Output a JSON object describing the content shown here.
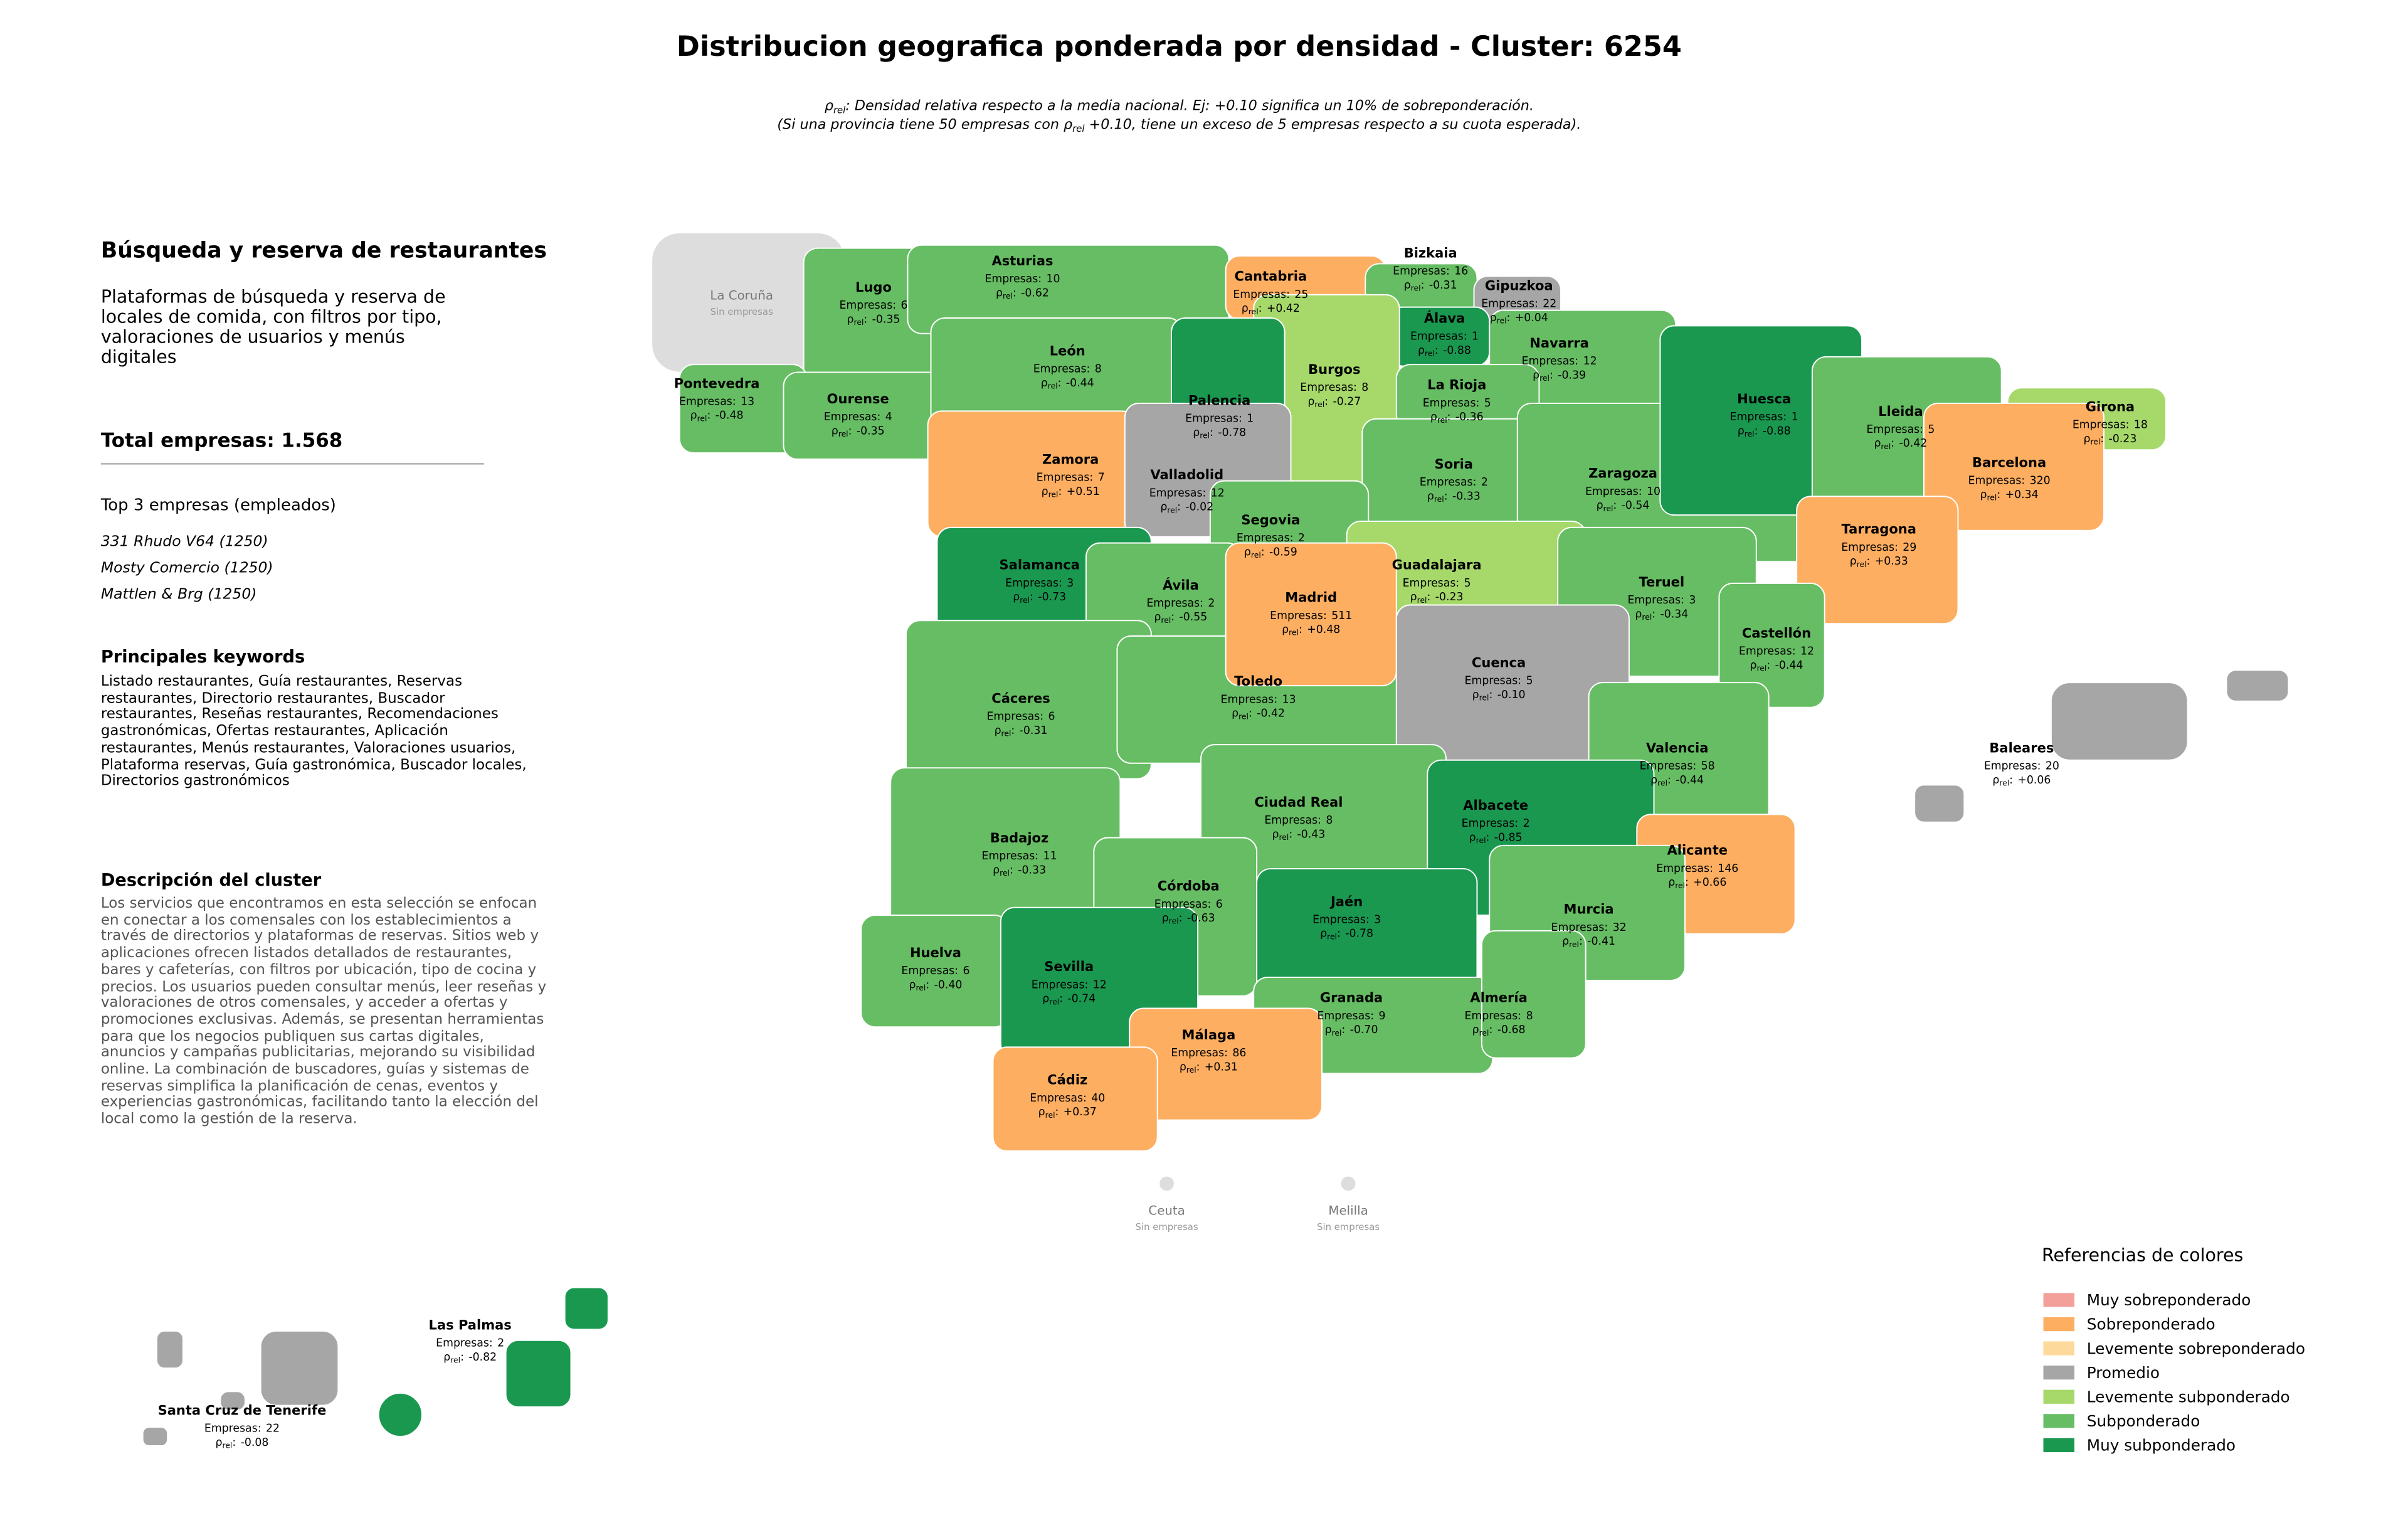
{
  "title": "Distribucion geografica ponderada por densidad - Cluster: 6254",
  "subtitle": {
    "line1": ": Densidad relativa respecto a la media nacional. Ej: +0.10 significa un 10% de sobreponderación.",
    "line2_before": "(Si una provincia tiene 50 empresas con ",
    "line2_after": " +0.10, tiene un exceso de 5 empresas respecto a su cuota esperada)."
  },
  "labels": {
    "empresas": "Empresas:",
    "rho": "ρ",
    "rho_sub": "rel",
    "rho_after": ":",
    "no_data": "Sin empresas"
  },
  "panel": {
    "heading": "Búsqueda y reserva de restaurantes",
    "description": "Plataformas de búsqueda y reserva de locales de comida, con filtros por tipo, valoraciones de usuarios y menús digitales",
    "total": "Total empresas: 1.568",
    "top_title": "Top 3 empresas (empleados)",
    "top": [
      "331 Rhudo V64 (1250)",
      "Mosty Comercio (1250)",
      "Mattlen & Brg (1250)"
    ],
    "keywords_title": "Principales keywords",
    "keywords": "Listado restaurantes, Guía restaurantes, Reservas restaurantes, Directorio restaurantes, Buscador restaurantes, Reseñas restaurantes, Recomendaciones gastronómicas, Ofertas restaurantes, Aplicación restaurantes, Menús restaurantes, Valoraciones usuarios, Plataforma reservas, Guía gastronómica, Buscador locales, Directorios gastronómicos",
    "description_title": "Descripción del cluster",
    "description_text": "Los servicios que encontramos en esta selección se enfocan en conectar a los comensales con los establecimientos a través de directorios y plataformas de reservas. Sitios web y aplicaciones ofrecen listados detallados de restaurantes, bares y cafeterías, con filtros por ubicación, tipo de cocina y precios. Los usuarios pueden consultar menús, leer reseñas y valoraciones de otros comensales, y acceder a ofertas y promociones exclusivas. Además, se presentan herramientas para que los negocios publiquen sus cartas digitales, anuncios y campañas publicitarias, mejorando su visibilidad online. La combinación de buscadores, guías y sistemas de reservas simplifica la planificación de cenas, eventos y experiencias gastronómicas, facilitando tanto la elección del local como la gestión de la reserva."
  },
  "regions": [
    {
      "name": "La Coruña",
      "color": "#dddddd"
    },
    {
      "name": "Lugo",
      "empresas": 6,
      "rho": "-0.35",
      "color": "#66bd63"
    },
    {
      "name": "Pontevedra",
      "empresas": 13,
      "rho": "-0.48",
      "color": "#66bd63"
    },
    {
      "name": "Ourense",
      "empresas": 4,
      "rho": "-0.35",
      "color": "#66bd63"
    },
    {
      "name": "Asturias",
      "empresas": 10,
      "rho": "-0.62",
      "color": "#66bd63"
    },
    {
      "name": "Cantabria",
      "empresas": 25,
      "rho": "+0.42",
      "color": "#fdae61"
    },
    {
      "name": "Bizkaia",
      "empresas": 16,
      "rho": "-0.31",
      "color": "#66bd63"
    },
    {
      "name": "Gipuzkoa",
      "empresas": 22,
      "rho": "+0.04",
      "color": "#a6a6a6"
    },
    {
      "name": "Álava",
      "empresas": 1,
      "rho": "-0.88",
      "color": "#1a9850"
    },
    {
      "name": "Navarra",
      "empresas": 12,
      "rho": "-0.39",
      "color": "#66bd63"
    },
    {
      "name": "León",
      "empresas": 8,
      "rho": "-0.44",
      "color": "#66bd63"
    },
    {
      "name": "Burgos",
      "empresas": 8,
      "rho": "-0.27",
      "color": "#a6d96a"
    },
    {
      "name": "Palencia",
      "empresas": 1,
      "rho": "-0.78",
      "color": "#1a9850"
    },
    {
      "name": "La Rioja",
      "empresas": 5,
      "rho": "-0.36",
      "color": "#66bd63"
    },
    {
      "name": "Zamora",
      "empresas": 7,
      "rho": "+0.51",
      "color": "#fdae61"
    },
    {
      "name": "Valladolid",
      "empresas": 12,
      "rho": "-0.02",
      "color": "#a6a6a6"
    },
    {
      "name": "Soria",
      "empresas": 2,
      "rho": "-0.33",
      "color": "#66bd63"
    },
    {
      "name": "Zaragoza",
      "empresas": 10,
      "rho": "-0.54",
      "color": "#66bd63"
    },
    {
      "name": "Huesca",
      "empresas": 1,
      "rho": "-0.88",
      "color": "#1a9850"
    },
    {
      "name": "Lleida",
      "empresas": 5,
      "rho": "-0.42",
      "color": "#66bd63"
    },
    {
      "name": "Girona",
      "empresas": 18,
      "rho": "-0.23",
      "color": "#a6d96a"
    },
    {
      "name": "Barcelona",
      "empresas": 320,
      "rho": "+0.34",
      "color": "#fdae61"
    },
    {
      "name": "Tarragona",
      "empresas": 29,
      "rho": "+0.33",
      "color": "#fdae61"
    },
    {
      "name": "Segovia",
      "empresas": 2,
      "rho": "-0.59",
      "color": "#66bd63"
    },
    {
      "name": "Salamanca",
      "empresas": 3,
      "rho": "-0.73",
      "color": "#1a9850"
    },
    {
      "name": "Ávila",
      "empresas": 2,
      "rho": "-0.55",
      "color": "#66bd63"
    },
    {
      "name": "Guadalajara",
      "empresas": 5,
      "rho": "-0.23",
      "color": "#a6d96a"
    },
    {
      "name": "Teruel",
      "empresas": 3,
      "rho": "-0.34",
      "color": "#66bd63"
    },
    {
      "name": "Castellón",
      "empresas": 12,
      "rho": "-0.44",
      "color": "#66bd63"
    },
    {
      "name": "Cáceres",
      "empresas": 6,
      "rho": "-0.31",
      "color": "#66bd63"
    },
    {
      "name": "Toledo",
      "empresas": 13,
      "rho": "-0.42",
      "color": "#66bd63"
    },
    {
      "name": "Madrid",
      "empresas": 511,
      "rho": "+0.48",
      "color": "#fdae61"
    },
    {
      "name": "Cuenca",
      "empresas": 5,
      "rho": "-0.10",
      "color": "#a6a6a6"
    },
    {
      "name": "Valencia",
      "empresas": 58,
      "rho": "-0.44",
      "color": "#66bd63"
    },
    {
      "name": "Badajoz",
      "empresas": 11,
      "rho": "-0.33",
      "color": "#66bd63"
    },
    {
      "name": "Ciudad Real",
      "empresas": 8,
      "rho": "-0.43",
      "color": "#66bd63"
    },
    {
      "name": "Albacete",
      "empresas": 2,
      "rho": "-0.85",
      "color": "#1a9850"
    },
    {
      "name": "Alicante",
      "empresas": 146,
      "rho": "+0.66",
      "color": "#fdae61"
    },
    {
      "name": "Córdoba",
      "empresas": 6,
      "rho": "-0.63",
      "color": "#66bd63"
    },
    {
      "name": "Murcia",
      "empresas": 32,
      "rho": "-0.41",
      "color": "#66bd63"
    },
    {
      "name": "Jaén",
      "empresas": 3,
      "rho": "-0.78",
      "color": "#1a9850"
    },
    {
      "name": "Huelva",
      "empresas": 6,
      "rho": "-0.40",
      "color": "#66bd63"
    },
    {
      "name": "Sevilla",
      "empresas": 12,
      "rho": "-0.74",
      "color": "#1a9850"
    },
    {
      "name": "Granada",
      "empresas": 9,
      "rho": "-0.70",
      "color": "#66bd63"
    },
    {
      "name": "Almería",
      "empresas": 8,
      "rho": "-0.68",
      "color": "#66bd63"
    },
    {
      "name": "Málaga",
      "empresas": 86,
      "rho": "+0.31",
      "color": "#fdae61"
    },
    {
      "name": "Cádiz",
      "empresas": 40,
      "rho": "+0.37",
      "color": "#fdae61"
    },
    {
      "name": "Baleares",
      "empresas": 20,
      "rho": "+0.06",
      "color": "#a6a6a6"
    },
    {
      "name": "Ceuta",
      "color": "#dddddd"
    },
    {
      "name": "Melilla",
      "color": "#dddddd"
    },
    {
      "name": "Las Palmas",
      "empresas": 2,
      "rho": "-0.82",
      "color": "#1a9850"
    },
    {
      "name": "Santa Cruz de Tenerife",
      "empresas": 22,
      "rho": "-0.08",
      "color": "#a6a6a6"
    }
  ],
  "legend": {
    "title": "Referencias de colores",
    "items": [
      {
        "name": "Muy sobreponderado",
        "color": "#f4a09a"
      },
      {
        "name": "Sobreponderado",
        "color": "#fdae61"
      },
      {
        "name": "Levemente sobreponderado",
        "color": "#fdd99b"
      },
      {
        "name": "Promedio",
        "color": "#a6a6a6"
      },
      {
        "name": "Levemente subponderado",
        "color": "#a6d96a"
      },
      {
        "name": "Subponderado",
        "color": "#66bd63"
      },
      {
        "name": "Muy subponderado",
        "color": "#1a9850"
      }
    ]
  }
}
